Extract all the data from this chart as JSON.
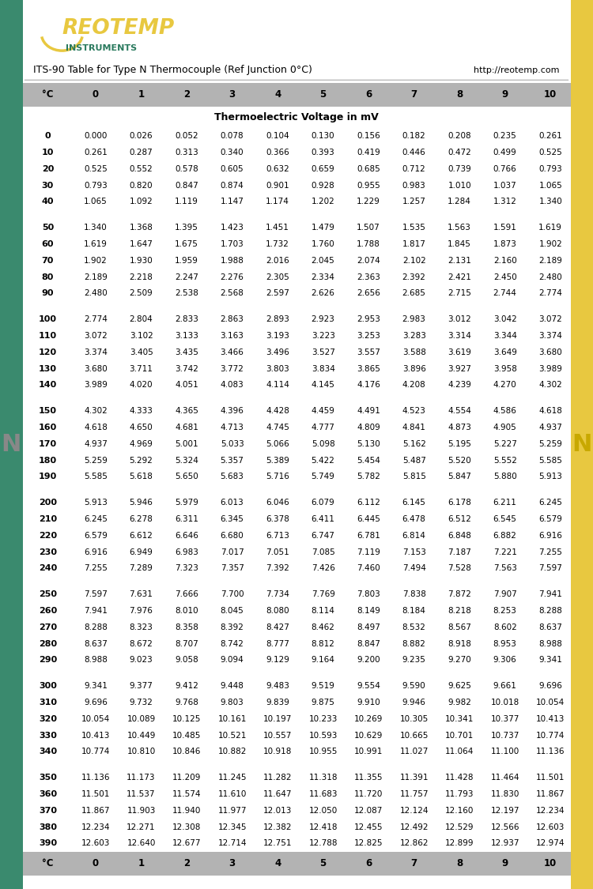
{
  "title": "ITS-90 Table for Type N Thermocouple (Ref Junction 0°C)",
  "url": "http://reotemp.com",
  "subtitle": "Thermoelectric Voltage in mV",
  "header": [
    "°C",
    "0",
    "1",
    "2",
    "3",
    "4",
    "5",
    "6",
    "7",
    "8",
    "9",
    "10"
  ],
  "table_data": [
    [
      0,
      0.0,
      0.026,
      0.052,
      0.078,
      0.104,
      0.13,
      0.156,
      0.182,
      0.208,
      0.235,
      0.261
    ],
    [
      10,
      0.261,
      0.287,
      0.313,
      0.34,
      0.366,
      0.393,
      0.419,
      0.446,
      0.472,
      0.499,
      0.525
    ],
    [
      20,
      0.525,
      0.552,
      0.578,
      0.605,
      0.632,
      0.659,
      0.685,
      0.712,
      0.739,
      0.766,
      0.793
    ],
    [
      30,
      0.793,
      0.82,
      0.847,
      0.874,
      0.901,
      0.928,
      0.955,
      0.983,
      1.01,
      1.037,
      1.065
    ],
    [
      40,
      1.065,
      1.092,
      1.119,
      1.147,
      1.174,
      1.202,
      1.229,
      1.257,
      1.284,
      1.312,
      1.34
    ],
    [
      50,
      1.34,
      1.368,
      1.395,
      1.423,
      1.451,
      1.479,
      1.507,
      1.535,
      1.563,
      1.591,
      1.619
    ],
    [
      60,
      1.619,
      1.647,
      1.675,
      1.703,
      1.732,
      1.76,
      1.788,
      1.817,
      1.845,
      1.873,
      1.902
    ],
    [
      70,
      1.902,
      1.93,
      1.959,
      1.988,
      2.016,
      2.045,
      2.074,
      2.102,
      2.131,
      2.16,
      2.189
    ],
    [
      80,
      2.189,
      2.218,
      2.247,
      2.276,
      2.305,
      2.334,
      2.363,
      2.392,
      2.421,
      2.45,
      2.48
    ],
    [
      90,
      2.48,
      2.509,
      2.538,
      2.568,
      2.597,
      2.626,
      2.656,
      2.685,
      2.715,
      2.744,
      2.774
    ],
    [
      100,
      2.774,
      2.804,
      2.833,
      2.863,
      2.893,
      2.923,
      2.953,
      2.983,
      3.012,
      3.042,
      3.072
    ],
    [
      110,
      3.072,
      3.102,
      3.133,
      3.163,
      3.193,
      3.223,
      3.253,
      3.283,
      3.314,
      3.344,
      3.374
    ],
    [
      120,
      3.374,
      3.405,
      3.435,
      3.466,
      3.496,
      3.527,
      3.557,
      3.588,
      3.619,
      3.649,
      3.68
    ],
    [
      130,
      3.68,
      3.711,
      3.742,
      3.772,
      3.803,
      3.834,
      3.865,
      3.896,
      3.927,
      3.958,
      3.989
    ],
    [
      140,
      3.989,
      4.02,
      4.051,
      4.083,
      4.114,
      4.145,
      4.176,
      4.208,
      4.239,
      4.27,
      4.302
    ],
    [
      150,
      4.302,
      4.333,
      4.365,
      4.396,
      4.428,
      4.459,
      4.491,
      4.523,
      4.554,
      4.586,
      4.618
    ],
    [
      160,
      4.618,
      4.65,
      4.681,
      4.713,
      4.745,
      4.777,
      4.809,
      4.841,
      4.873,
      4.905,
      4.937
    ],
    [
      170,
      4.937,
      4.969,
      5.001,
      5.033,
      5.066,
      5.098,
      5.13,
      5.162,
      5.195,
      5.227,
      5.259
    ],
    [
      180,
      5.259,
      5.292,
      5.324,
      5.357,
      5.389,
      5.422,
      5.454,
      5.487,
      5.52,
      5.552,
      5.585
    ],
    [
      190,
      5.585,
      5.618,
      5.65,
      5.683,
      5.716,
      5.749,
      5.782,
      5.815,
      5.847,
      5.88,
      5.913
    ],
    [
      200,
      5.913,
      5.946,
      5.979,
      6.013,
      6.046,
      6.079,
      6.112,
      6.145,
      6.178,
      6.211,
      6.245
    ],
    [
      210,
      6.245,
      6.278,
      6.311,
      6.345,
      6.378,
      6.411,
      6.445,
      6.478,
      6.512,
      6.545,
      6.579
    ],
    [
      220,
      6.579,
      6.612,
      6.646,
      6.68,
      6.713,
      6.747,
      6.781,
      6.814,
      6.848,
      6.882,
      6.916
    ],
    [
      230,
      6.916,
      6.949,
      6.983,
      7.017,
      7.051,
      7.085,
      7.119,
      7.153,
      7.187,
      7.221,
      7.255
    ],
    [
      240,
      7.255,
      7.289,
      7.323,
      7.357,
      7.392,
      7.426,
      7.46,
      7.494,
      7.528,
      7.563,
      7.597
    ],
    [
      250,
      7.597,
      7.631,
      7.666,
      7.7,
      7.734,
      7.769,
      7.803,
      7.838,
      7.872,
      7.907,
      7.941
    ],
    [
      260,
      7.941,
      7.976,
      8.01,
      8.045,
      8.08,
      8.114,
      8.149,
      8.184,
      8.218,
      8.253,
      8.288
    ],
    [
      270,
      8.288,
      8.323,
      8.358,
      8.392,
      8.427,
      8.462,
      8.497,
      8.532,
      8.567,
      8.602,
      8.637
    ],
    [
      280,
      8.637,
      8.672,
      8.707,
      8.742,
      8.777,
      8.812,
      8.847,
      8.882,
      8.918,
      8.953,
      8.988
    ],
    [
      290,
      8.988,
      9.023,
      9.058,
      9.094,
      9.129,
      9.164,
      9.2,
      9.235,
      9.27,
      9.306,
      9.341
    ],
    [
      300,
      9.341,
      9.377,
      9.412,
      9.448,
      9.483,
      9.519,
      9.554,
      9.59,
      9.625,
      9.661,
      9.696
    ],
    [
      310,
      9.696,
      9.732,
      9.768,
      9.803,
      9.839,
      9.875,
      9.91,
      9.946,
      9.982,
      10.018,
      10.054
    ],
    [
      320,
      10.054,
      10.089,
      10.125,
      10.161,
      10.197,
      10.233,
      10.269,
      10.305,
      10.341,
      10.377,
      10.413
    ],
    [
      330,
      10.413,
      10.449,
      10.485,
      10.521,
      10.557,
      10.593,
      10.629,
      10.665,
      10.701,
      10.737,
      10.774
    ],
    [
      340,
      10.774,
      10.81,
      10.846,
      10.882,
      10.918,
      10.955,
      10.991,
      11.027,
      11.064,
      11.1,
      11.136
    ],
    [
      350,
      11.136,
      11.173,
      11.209,
      11.245,
      11.282,
      11.318,
      11.355,
      11.391,
      11.428,
      11.464,
      11.501
    ],
    [
      360,
      11.501,
      11.537,
      11.574,
      11.61,
      11.647,
      11.683,
      11.72,
      11.757,
      11.793,
      11.83,
      11.867
    ],
    [
      370,
      11.867,
      11.903,
      11.94,
      11.977,
      12.013,
      12.05,
      12.087,
      12.124,
      12.16,
      12.197,
      12.234
    ],
    [
      380,
      12.234,
      12.271,
      12.308,
      12.345,
      12.382,
      12.418,
      12.455,
      12.492,
      12.529,
      12.566,
      12.603
    ],
    [
      390,
      12.603,
      12.64,
      12.677,
      12.714,
      12.751,
      12.788,
      12.825,
      12.862,
      12.899,
      12.937,
      12.974
    ]
  ],
  "group_indices": [
    0,
    5,
    10,
    15,
    20,
    25,
    30,
    35,
    40
  ],
  "header_bg": "#b3b3b3",
  "green_side": "#3a8a6e",
  "yellow_side": "#e8c840",
  "logo_color_gold": "#e8c840",
  "logo_color_green": "#2a7a5e",
  "N_left_color": "#888888",
  "N_right_color": "#c8a800"
}
